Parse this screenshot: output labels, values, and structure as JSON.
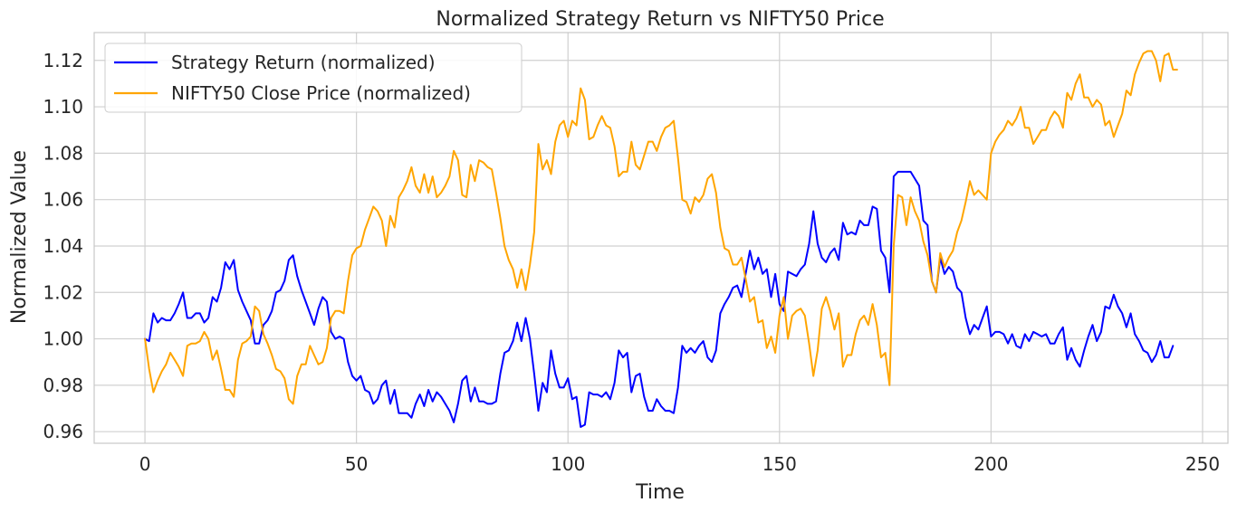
{
  "chart_data": {
    "type": "line",
    "title": "Normalized Strategy Return vs NIFTY50 Price",
    "xlabel": "Time",
    "ylabel": "Normalized Value",
    "xlim": [
      -12,
      256
    ],
    "ylim": [
      0.955,
      1.132
    ],
    "x_ticks": [
      0,
      50,
      100,
      150,
      200,
      250
    ],
    "x_tick_labels": [
      "0",
      "50",
      "100",
      "150",
      "200",
      "250"
    ],
    "y_ticks": [
      0.96,
      0.98,
      1.0,
      1.02,
      1.04,
      1.06,
      1.08,
      1.1,
      1.12
    ],
    "y_tick_labels": [
      "0.96",
      "0.98",
      "1.00",
      "1.02",
      "1.04",
      "1.06",
      "1.08",
      "1.10",
      "1.12"
    ],
    "grid": true,
    "legend_position": "top-left",
    "series": [
      {
        "name": "Strategy Return (normalized)",
        "color": "#0000ff",
        "x": [
          0,
          1,
          2,
          3,
          4,
          5,
          6,
          7,
          8,
          9,
          10,
          11,
          12,
          13,
          14,
          15,
          16,
          17,
          18,
          19,
          20,
          21,
          22,
          23,
          24,
          25,
          26,
          27,
          28,
          29,
          30,
          31,
          32,
          33,
          34,
          35,
          36,
          37,
          38,
          39,
          40,
          41,
          42,
          43,
          44,
          45,
          46,
          47,
          48,
          49,
          50,
          51,
          52,
          53,
          54,
          55,
          56,
          57,
          58,
          59,
          60,
          61,
          62,
          63,
          64,
          65,
          66,
          67,
          68,
          69,
          70,
          71,
          72,
          73,
          74,
          75,
          76,
          77,
          78,
          79,
          80,
          81,
          82,
          83,
          84,
          85,
          86,
          87,
          88,
          89,
          90,
          91,
          92,
          93,
          94,
          95,
          96,
          97,
          98,
          99,
          100,
          101,
          102,
          103,
          104,
          105,
          106,
          107,
          108,
          109,
          110,
          111,
          112,
          113,
          114,
          115,
          116,
          117,
          118,
          119,
          120,
          121,
          122,
          123,
          124,
          125,
          126,
          127,
          128,
          129,
          130,
          131,
          132,
          133,
          134,
          135,
          136,
          137,
          138,
          139,
          140,
          141,
          142,
          143,
          144,
          145,
          146,
          147,
          148,
          149,
          150,
          151,
          152,
          153,
          154,
          155,
          156,
          157,
          158,
          159,
          160,
          161,
          162,
          163,
          164,
          165,
          166,
          167,
          168,
          169,
          170,
          171,
          172,
          173,
          174,
          175,
          176,
          177,
          178,
          179,
          180,
          181,
          182,
          183,
          184,
          185,
          186,
          187,
          188,
          189,
          190,
          191,
          192,
          193,
          194,
          195,
          196,
          197,
          198,
          199,
          200,
          201,
          202,
          203,
          204,
          205,
          206,
          207,
          208,
          209,
          210,
          211,
          212,
          213,
          214,
          215,
          216,
          217,
          218,
          219,
          220,
          221,
          222,
          223,
          224,
          225,
          226,
          227,
          228,
          229,
          230,
          231,
          232,
          233,
          234,
          235,
          236,
          237,
          238,
          239,
          240,
          241,
          242,
          243
        ],
        "y": [
          1.0,
          0.999,
          1.011,
          1.007,
          1.009,
          1.008,
          1.008,
          1.011,
          1.015,
          1.02,
          1.009,
          1.009,
          1.011,
          1.011,
          1.007,
          1.009,
          1.018,
          1.016,
          1.022,
          1.033,
          1.03,
          1.034,
          1.021,
          1.016,
          1.012,
          1.008,
          0.998,
          0.998,
          1.006,
          1.008,
          1.012,
          1.02,
          1.021,
          1.025,
          1.034,
          1.036,
          1.027,
          1.021,
          1.016,
          1.011,
          1.006,
          1.013,
          1.018,
          1.016,
          1.003,
          1.0,
          1.001,
          1.0,
          0.99,
          0.984,
          0.982,
          0.984,
          0.978,
          0.977,
          0.972,
          0.974,
          0.98,
          0.982,
          0.972,
          0.978,
          0.968,
          0.968,
          0.968,
          0.966,
          0.972,
          0.976,
          0.971,
          0.978,
          0.973,
          0.977,
          0.975,
          0.972,
          0.969,
          0.964,
          0.972,
          0.982,
          0.984,
          0.973,
          0.979,
          0.973,
          0.973,
          0.972,
          0.972,
          0.973,
          0.985,
          0.994,
          0.995,
          0.999,
          1.007,
          0.999,
          1.009,
          1.0,
          0.985,
          0.969,
          0.981,
          0.977,
          0.995,
          0.985,
          0.979,
          0.979,
          0.983,
          0.974,
          0.975,
          0.962,
          0.963,
          0.977,
          0.976,
          0.976,
          0.975,
          0.977,
          0.974,
          0.981,
          0.995,
          0.992,
          0.994,
          0.977,
          0.984,
          0.985,
          0.975,
          0.969,
          0.969,
          0.974,
          0.971,
          0.969,
          0.969,
          0.968,
          0.979,
          0.997,
          0.994,
          0.996,
          0.994,
          0.997,
          0.999,
          0.992,
          0.99,
          0.995,
          1.011,
          1.015,
          1.018,
          1.022,
          1.023,
          1.018,
          1.028,
          1.038,
          1.03,
          1.035,
          1.028,
          1.03,
          1.018,
          1.028,
          1.015,
          1.012,
          1.029,
          1.028,
          1.027,
          1.03,
          1.032,
          1.041,
          1.055,
          1.041,
          1.035,
          1.033,
          1.037,
          1.039,
          1.034,
          1.05,
          1.045,
          1.046,
          1.045,
          1.051,
          1.049,
          1.049,
          1.057,
          1.056,
          1.038,
          1.035,
          1.02,
          1.07,
          1.072,
          1.072,
          1.072,
          1.072,
          1.069,
          1.066,
          1.051,
          1.049,
          1.025,
          1.02,
          1.035,
          1.028,
          1.031,
          1.029,
          1.022,
          1.02,
          1.009,
          1.002,
          1.006,
          1.004,
          1.009,
          1.014,
          1.001,
          1.003,
          1.003,
          1.002,
          0.998,
          1.002,
          0.997,
          0.996,
          1.002,
          0.999,
          1.003,
          1.002,
          1.001,
          1.002,
          0.998,
          0.998,
          1.002,
          1.005,
          0.991,
          0.996,
          0.991,
          0.988,
          0.995,
          1.001,
          1.006,
          0.999,
          1.003,
          1.014,
          1.013,
          1.019,
          1.014,
          1.011,
          1.005,
          1.011,
          1.002,
          0.999,
          0.995,
          0.994,
          0.99,
          0.993,
          0.999,
          0.992,
          0.992,
          0.997
        ]
      },
      {
        "name": "NIFTY50 Close Price (normalized)",
        "color": "#ffa500",
        "x": [
          0,
          1,
          2,
          3,
          4,
          5,
          6,
          7,
          8,
          9,
          10,
          11,
          12,
          13,
          14,
          15,
          16,
          17,
          18,
          19,
          20,
          21,
          22,
          23,
          24,
          25,
          26,
          27,
          28,
          29,
          30,
          31,
          32,
          33,
          34,
          35,
          36,
          37,
          38,
          39,
          40,
          41,
          42,
          43,
          44,
          45,
          46,
          47,
          48,
          49,
          50,
          51,
          52,
          53,
          54,
          55,
          56,
          57,
          58,
          59,
          60,
          61,
          62,
          63,
          64,
          65,
          66,
          67,
          68,
          69,
          70,
          71,
          72,
          73,
          74,
          75,
          76,
          77,
          78,
          79,
          80,
          81,
          82,
          83,
          84,
          85,
          86,
          87,
          88,
          89,
          90,
          91,
          92,
          93,
          94,
          95,
          96,
          97,
          98,
          99,
          100,
          101,
          102,
          103,
          104,
          105,
          106,
          107,
          108,
          109,
          110,
          111,
          112,
          113,
          114,
          115,
          116,
          117,
          118,
          119,
          120,
          121,
          122,
          123,
          124,
          125,
          126,
          127,
          128,
          129,
          130,
          131,
          132,
          133,
          134,
          135,
          136,
          137,
          138,
          139,
          140,
          141,
          142,
          143,
          144,
          145,
          146,
          147,
          148,
          149,
          150,
          151,
          152,
          153,
          154,
          155,
          156,
          157,
          158,
          159,
          160,
          161,
          162,
          163,
          164,
          165,
          166,
          167,
          168,
          169,
          170,
          171,
          172,
          173,
          174,
          175,
          176,
          177,
          178,
          179,
          180,
          181,
          182,
          183,
          184,
          185,
          186,
          187,
          188,
          189,
          190,
          191,
          192,
          193,
          194,
          195,
          196,
          197,
          198,
          199,
          200,
          201,
          202,
          203,
          204,
          205,
          206,
          207,
          208,
          209,
          210,
          211,
          212,
          213,
          214,
          215,
          216,
          217,
          218,
          219,
          220,
          221,
          222,
          223,
          224,
          225,
          226,
          227,
          228,
          229,
          230,
          231,
          232,
          233,
          234,
          235,
          236,
          237,
          238,
          239,
          240,
          241,
          242,
          243,
          244
        ],
        "y": [
          1.0,
          0.987,
          0.977,
          0.982,
          0.986,
          0.989,
          0.994,
          0.991,
          0.988,
          0.984,
          0.997,
          0.998,
          0.998,
          0.999,
          1.003,
          1.0,
          0.991,
          0.995,
          0.987,
          0.978,
          0.978,
          0.975,
          0.991,
          0.998,
          0.999,
          1.001,
          1.014,
          1.012,
          1.002,
          0.998,
          0.993,
          0.987,
          0.986,
          0.983,
          0.974,
          0.972,
          0.984,
          0.989,
          0.989,
          0.997,
          0.993,
          0.989,
          0.99,
          0.996,
          1.009,
          1.012,
          1.012,
          1.011,
          1.025,
          1.036,
          1.039,
          1.04,
          1.047,
          1.052,
          1.057,
          1.055,
          1.051,
          1.04,
          1.053,
          1.048,
          1.061,
          1.064,
          1.068,
          1.074,
          1.066,
          1.063,
          1.071,
          1.063,
          1.07,
          1.061,
          1.063,
          1.066,
          1.07,
          1.081,
          1.077,
          1.062,
          1.061,
          1.075,
          1.068,
          1.077,
          1.076,
          1.074,
          1.073,
          1.063,
          1.052,
          1.04,
          1.034,
          1.03,
          1.022,
          1.03,
          1.021,
          1.032,
          1.046,
          1.084,
          1.073,
          1.077,
          1.071,
          1.085,
          1.092,
          1.094,
          1.087,
          1.094,
          1.092,
          1.108,
          1.103,
          1.086,
          1.087,
          1.092,
          1.096,
          1.092,
          1.091,
          1.083,
          1.07,
          1.072,
          1.072,
          1.085,
          1.075,
          1.073,
          1.079,
          1.085,
          1.085,
          1.081,
          1.087,
          1.091,
          1.092,
          1.094,
          1.078,
          1.06,
          1.059,
          1.054,
          1.061,
          1.059,
          1.062,
          1.069,
          1.071,
          1.063,
          1.048,
          1.039,
          1.038,
          1.032,
          1.032,
          1.035,
          1.026,
          1.016,
          1.018,
          1.007,
          1.008,
          0.996,
          1.001,
          0.994,
          1.01,
          1.018,
          1.0,
          1.01,
          1.012,
          1.013,
          1.01,
          0.998,
          0.984,
          0.995,
          1.013,
          1.018,
          1.012,
          1.004,
          1.011,
          0.988,
          0.993,
          0.993,
          1.002,
          1.008,
          1.01,
          1.006,
          1.015,
          1.006,
          0.992,
          0.994,
          0.98,
          1.04,
          1.062,
          1.061,
          1.049,
          1.061,
          1.055,
          1.051,
          1.042,
          1.036,
          1.025,
          1.02,
          1.037,
          1.031,
          1.035,
          1.038,
          1.046,
          1.051,
          1.059,
          1.068,
          1.062,
          1.064,
          1.062,
          1.06,
          1.08,
          1.085,
          1.088,
          1.09,
          1.094,
          1.092,
          1.095,
          1.1,
          1.091,
          1.091,
          1.084,
          1.087,
          1.09,
          1.09,
          1.095,
          1.098,
          1.096,
          1.091,
          1.106,
          1.103,
          1.11,
          1.114,
          1.104,
          1.104,
          1.1,
          1.103,
          1.101,
          1.092,
          1.094,
          1.087,
          1.092,
          1.097,
          1.107,
          1.105,
          1.114,
          1.119,
          1.123,
          1.124,
          1.124,
          1.12,
          1.111,
          1.122,
          1.123,
          1.116,
          1.116
        ]
      }
    ]
  }
}
